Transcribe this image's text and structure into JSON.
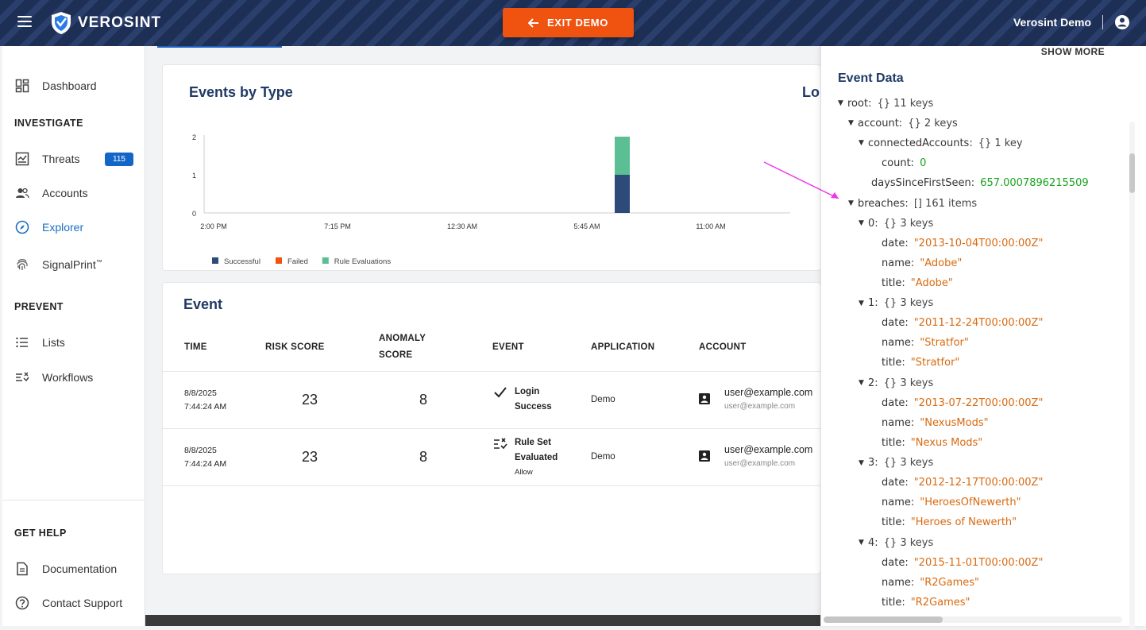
{
  "header": {
    "brand": "VEROSINT",
    "exit_label": "EXIT DEMO",
    "user_name": "Verosint Demo"
  },
  "sidebar": {
    "dashboard": "Dashboard",
    "investigate": "INVESTIGATE",
    "threats": "Threats",
    "threats_count": "115",
    "accounts": "Accounts",
    "explorer": "Explorer",
    "signalprint": "SignalPrint",
    "tm": "™",
    "prevent": "PREVENT",
    "lists": "Lists",
    "workflows": "Workflows",
    "get_help": "GET HELP",
    "documentation": "Documentation",
    "contact": "Contact Support"
  },
  "events_by_type": {
    "title": "Events by Type",
    "right_title_partial": "Lo"
  },
  "chart_data": {
    "type": "bar",
    "title": "Events by Type",
    "categories": [
      "2:00 PM",
      "7:15 PM",
      "12:30 AM",
      "5:45 AM",
      "11:00 AM"
    ],
    "y_ticks": [
      "0",
      "1",
      "2"
    ],
    "ylim": [
      0,
      2
    ],
    "series": [
      {
        "name": "Successful",
        "color": "#2d4a7a",
        "bars": [
          {
            "x": "~5:45 AM",
            "value": 1
          }
        ]
      },
      {
        "name": "Failed",
        "color": "#f0520f",
        "bars": []
      },
      {
        "name": "Rule Evaluations",
        "color": "#5cbf94",
        "bars": [
          {
            "x": "~5:45 AM",
            "value": 1
          }
        ]
      }
    ],
    "legend": "bottom-left"
  },
  "event_table": {
    "title": "Event",
    "headers": {
      "time": "TIME",
      "risk": "RISK SCORE",
      "anomaly1": "ANOMALY",
      "anomaly2": "SCORE",
      "event": "EVENT",
      "application": "APPLICATION",
      "account": "ACCOUNT"
    },
    "rows": [
      {
        "date": "8/8/2025",
        "time": "7:44:24 AM",
        "risk": "23",
        "anomaly": "8",
        "event1": "Login",
        "event2": "Success",
        "event3": "",
        "app": "Demo",
        "acct": "user@example.com",
        "acct_sub": "user@example.com"
      },
      {
        "date": "8/8/2025",
        "time": "7:44:24 AM",
        "risk": "23",
        "anomaly": "8",
        "event1": "Rule Set",
        "event2": "Evaluated",
        "event3": "Allow",
        "app": "Demo",
        "acct": "user@example.com",
        "acct_sub": "user@example.com"
      }
    ]
  },
  "event_data": {
    "show_more": "SHOW MORE",
    "title": "Event Data",
    "root": {
      "key": "root:",
      "meta": "{}  11 keys"
    },
    "account": {
      "key": "account:",
      "meta": "{}  2 keys"
    },
    "connected": {
      "key": "connectedAccounts:",
      "meta": "{}  1 key"
    },
    "count": {
      "key": "count:",
      "value": "0"
    },
    "days": {
      "key": "daysSinceFirstSeen:",
      "value": "657.0007896215509"
    },
    "breaches": {
      "key": "breaches:",
      "meta": "[]  161 items"
    },
    "items": [
      {
        "key": "0:",
        "meta": "{}  3 keys",
        "date": "\"2013-10-04T00:00:00Z\"",
        "name": "\"Adobe\"",
        "title": "\"Adobe\""
      },
      {
        "key": "1:",
        "meta": "{}  3 keys",
        "date": "\"2011-12-24T00:00:00Z\"",
        "name": "\"Stratfor\"",
        "title": "\"Stratfor\""
      },
      {
        "key": "2:",
        "meta": "{}  3 keys",
        "date": "\"2013-07-22T00:00:00Z\"",
        "name": "\"NexusMods\"",
        "title": "\"Nexus Mods\""
      },
      {
        "key": "3:",
        "meta": "{}  3 keys",
        "date": "\"2012-12-17T00:00:00Z\"",
        "name": "\"HeroesOfNewerth\"",
        "title": "\"Heroes of Newerth\""
      },
      {
        "key": "4:",
        "meta": "{}  3 keys",
        "date": "\"2015-11-01T00:00:00Z\"",
        "name": "\"R2Games\"",
        "title": "\"R2Games\""
      }
    ],
    "labels": {
      "date": "date:",
      "name": "name:",
      "title": "title:"
    }
  }
}
